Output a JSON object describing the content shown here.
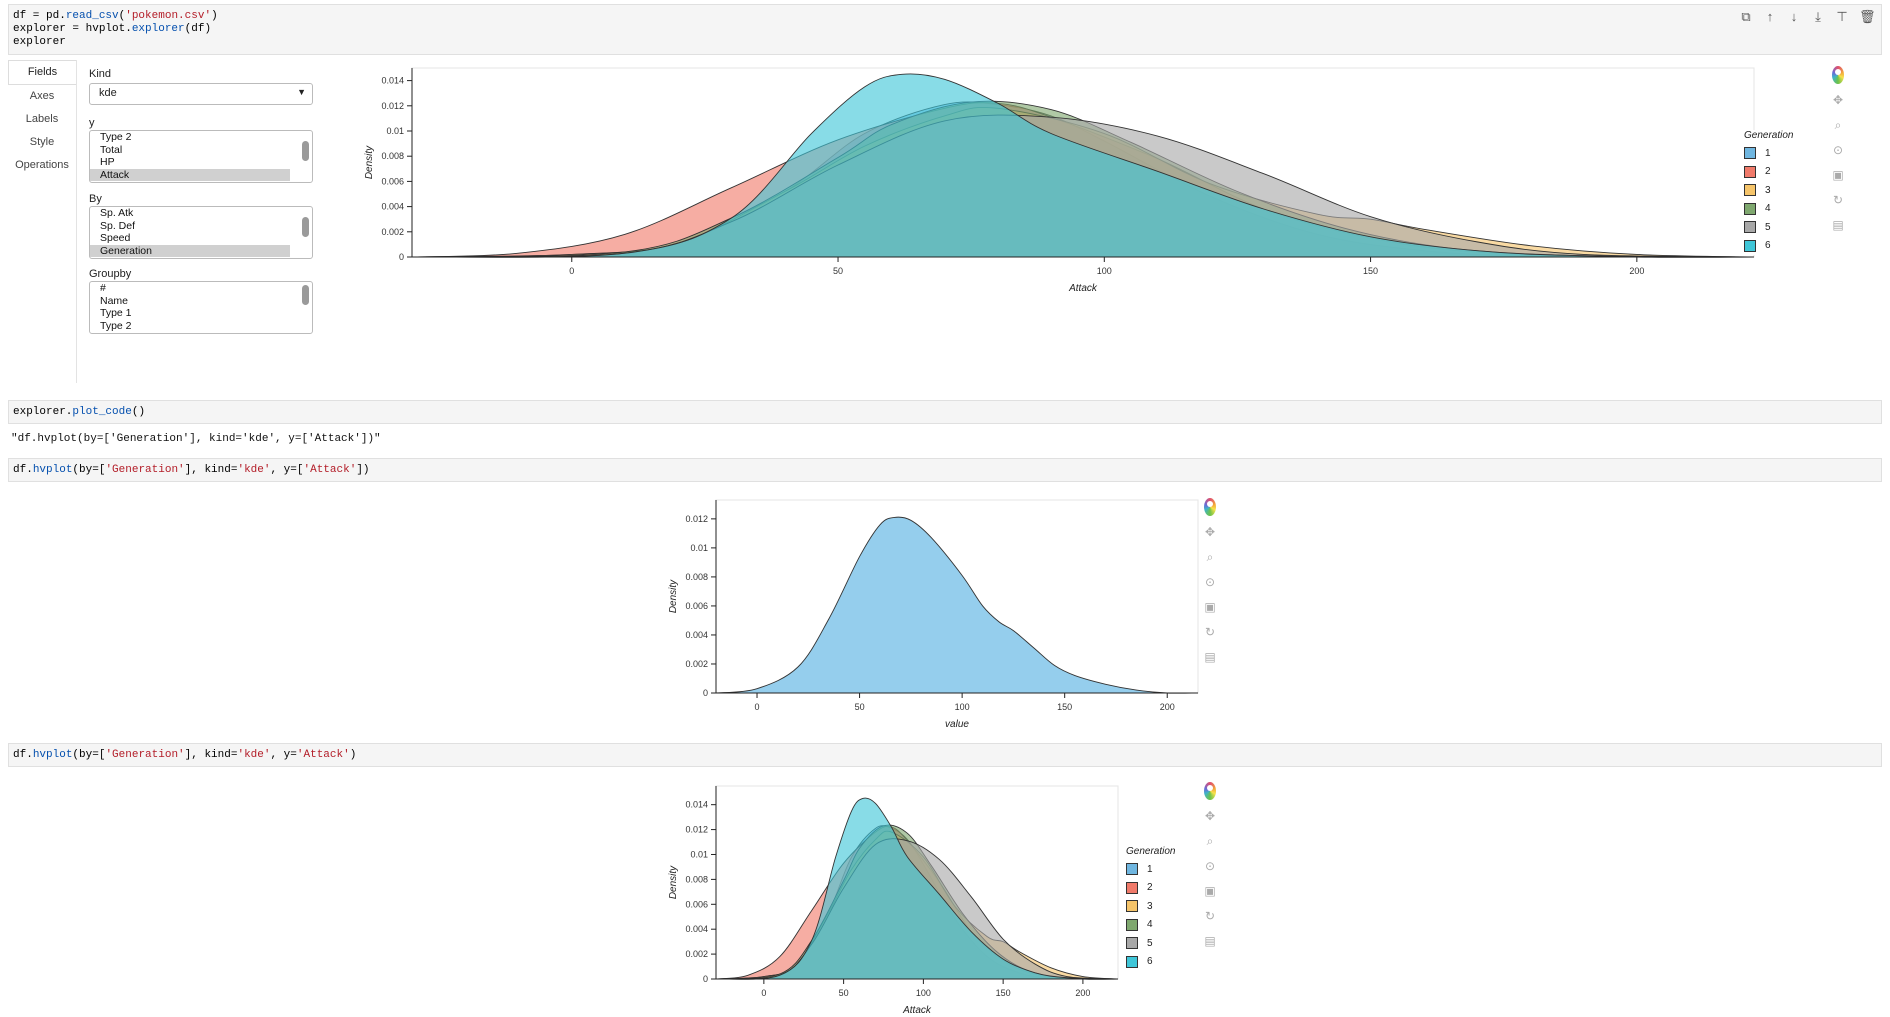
{
  "cells": {
    "cell1": {
      "lines": [
        [
          {
            "t": "df = pd."
          },
          {
            "t": "read_csv",
            "c": "fn"
          },
          {
            "t": "("
          },
          {
            "t": "'pokemon.csv'",
            "c": "str"
          },
          {
            "t": ")"
          }
        ],
        [
          {
            "t": "explorer = hvplot."
          },
          {
            "t": "explorer",
            "c": "fn"
          },
          {
            "t": "(df)"
          }
        ],
        [
          {
            "t": "explorer"
          }
        ]
      ],
      "toolbar": [
        "⧉",
        "↑",
        "↓",
        "⤓",
        "⊤",
        "🗑"
      ]
    },
    "cell2": {
      "lines": [
        [
          {
            "t": "explorer."
          },
          {
            "t": "plot_code",
            "c": "fn"
          },
          {
            "t": "()"
          }
        ]
      ]
    },
    "cell2_output": "\"df.hvplot(by=['Generation'], kind='kde', y=['Attack'])\"",
    "cell3": {
      "lines": [
        [
          {
            "t": "df."
          },
          {
            "t": "hvplot",
            "c": "fn"
          },
          {
            "t": "(by=["
          },
          {
            "t": "'Generation'",
            "c": "str"
          },
          {
            "t": "], kind="
          },
          {
            "t": "'kde'",
            "c": "str"
          },
          {
            "t": ", y=["
          },
          {
            "t": "'Attack'",
            "c": "str"
          },
          {
            "t": "])"
          }
        ]
      ]
    },
    "cell4": {
      "lines": [
        [
          {
            "t": "df."
          },
          {
            "t": "hvplot",
            "c": "fn"
          },
          {
            "t": "(by=["
          },
          {
            "t": "'Generation'",
            "c": "str"
          },
          {
            "t": "], kind="
          },
          {
            "t": "'kde'",
            "c": "str"
          },
          {
            "t": ", y="
          },
          {
            "t": "'Attack'",
            "c": "str"
          },
          {
            "t": ")"
          }
        ]
      ]
    }
  },
  "explorer": {
    "tabs": [
      "Fields",
      "Axes",
      "Labels",
      "Style",
      "Operations"
    ],
    "active_tab": "Fields",
    "kind": {
      "label": "Kind",
      "value": "kde"
    },
    "y": {
      "label": "y",
      "options": [
        "Type 2",
        "Total",
        "HP",
        "Attack"
      ],
      "selected": "Attack"
    },
    "by": {
      "label": "By",
      "options": [
        "Sp. Atk",
        "Sp. Def",
        "Speed",
        "Generation"
      ],
      "selected": "Generation"
    },
    "groupby": {
      "label": "Groupby",
      "options": [
        "#",
        "Name",
        "Type 1",
        "Type 2"
      ],
      "selected": null
    }
  },
  "colors": {
    "gen": [
      "#6fb6e0",
      "#f07a6a",
      "#f5c46a",
      "#7fa86f",
      "#a8a8a8",
      "#3fc6d8"
    ],
    "single": "#8fcbec",
    "edge": "#333333",
    "code_fn": "#0550ae",
    "code_str": "#b31d28"
  },
  "bokeh_tools": [
    "bokeh-logo",
    "pan-icon",
    "box-zoom-icon",
    "wheel-zoom-icon",
    "save-icon",
    "reset-icon",
    "hover-icon"
  ],
  "chart_data": [
    {
      "id": "explorer-plot",
      "type": "area",
      "title": "",
      "xlabel": "Attack",
      "ylabel": "Density",
      "xlim": [
        -30,
        222
      ],
      "ylim": [
        0,
        0.015
      ],
      "xticks": [
        0,
        50,
        100,
        150,
        200
      ],
      "yticks": [
        0,
        0.002,
        0.004,
        0.006,
        0.008,
        0.01,
        0.012,
        0.014
      ],
      "legend": {
        "title": "Generation",
        "position": "right"
      },
      "series": [
        {
          "name": "1",
          "points": [
            [
              -30,
              0
            ],
            [
              0,
              0.0002
            ],
            [
              20,
              0.0011
            ],
            [
              40,
              0.0052
            ],
            [
              55,
              0.0098
            ],
            [
              70,
              0.0121
            ],
            [
              80,
              0.0121
            ],
            [
              90,
              0.0112
            ],
            [
              100,
              0.0092
            ],
            [
              120,
              0.0048
            ],
            [
              140,
              0.0018
            ],
            [
              160,
              0.0005
            ],
            [
              180,
              0.0001
            ],
            [
              222,
              0
            ]
          ]
        },
        {
          "name": "2",
          "points": [
            [
              -30,
              0
            ],
            [
              -10,
              0.0003
            ],
            [
              10,
              0.0018
            ],
            [
              30,
              0.0055
            ],
            [
              50,
              0.0093
            ],
            [
              70,
              0.0118
            ],
            [
              80,
              0.0122
            ],
            [
              90,
              0.0111
            ],
            [
              110,
              0.0078
            ],
            [
              130,
              0.0038
            ],
            [
              150,
              0.0015
            ],
            [
              170,
              0.0004
            ],
            [
              200,
              0
            ],
            [
              222,
              0
            ]
          ]
        },
        {
          "name": "3",
          "points": [
            [
              -30,
              0
            ],
            [
              0,
              0.0002
            ],
            [
              20,
              0.0011
            ],
            [
              40,
              0.0052
            ],
            [
              55,
              0.0088
            ],
            [
              70,
              0.0112
            ],
            [
              80,
              0.0118
            ],
            [
              100,
              0.0098
            ],
            [
              120,
              0.0058
            ],
            [
              140,
              0.0034
            ],
            [
              150,
              0.003
            ],
            [
              160,
              0.0022
            ],
            [
              180,
              0.0009
            ],
            [
              200,
              0.0002
            ],
            [
              222,
              0
            ]
          ]
        },
        {
          "name": "4",
          "points": [
            [
              -30,
              0
            ],
            [
              10,
              0.0004
            ],
            [
              30,
              0.0031
            ],
            [
              50,
              0.0079
            ],
            [
              60,
              0.0105
            ],
            [
              75,
              0.0123
            ],
            [
              90,
              0.0117
            ],
            [
              105,
              0.0091
            ],
            [
              125,
              0.0052
            ],
            [
              145,
              0.0023
            ],
            [
              165,
              0.0007
            ],
            [
              190,
              0.0001
            ],
            [
              222,
              0
            ]
          ]
        },
        {
          "name": "5",
          "points": [
            [
              -30,
              0
            ],
            [
              10,
              0.0003
            ],
            [
              30,
              0.0028
            ],
            [
              50,
              0.0073
            ],
            [
              70,
              0.0108
            ],
            [
              90,
              0.0111
            ],
            [
              110,
              0.0096
            ],
            [
              130,
              0.0066
            ],
            [
              150,
              0.0032
            ],
            [
              170,
              0.0012
            ],
            [
              190,
              0.0002
            ],
            [
              222,
              0
            ]
          ]
        },
        {
          "name": "6",
          "points": [
            [
              -30,
              0
            ],
            [
              10,
              0.0003
            ],
            [
              30,
              0.0031
            ],
            [
              45,
              0.0098
            ],
            [
              55,
              0.0135
            ],
            [
              62,
              0.0145
            ],
            [
              70,
              0.0141
            ],
            [
              80,
              0.0122
            ],
            [
              90,
              0.0098
            ],
            [
              110,
              0.0068
            ],
            [
              130,
              0.0038
            ],
            [
              150,
              0.0016
            ],
            [
              170,
              0.0005
            ],
            [
              190,
              0.0001
            ],
            [
              222,
              0
            ]
          ]
        }
      ]
    },
    {
      "id": "single-kde-plot",
      "type": "area",
      "title": "",
      "xlabel": "value",
      "ylabel": "Density",
      "xlim": [
        -20,
        215
      ],
      "ylim": [
        0,
        0.0133
      ],
      "xticks": [
        0,
        50,
        100,
        150,
        200
      ],
      "yticks": [
        0,
        0.002,
        0.004,
        0.006,
        0.008,
        0.01,
        0.012
      ],
      "series": [
        {
          "points": [
            [
              -20,
              0
            ],
            [
              0,
              0.0003
            ],
            [
              20,
              0.0018
            ],
            [
              35,
              0.0051
            ],
            [
              50,
              0.0094
            ],
            [
              60,
              0.0116
            ],
            [
              67,
              0.0121
            ],
            [
              75,
              0.0119
            ],
            [
              85,
              0.0107
            ],
            [
              100,
              0.0081
            ],
            [
              110,
              0.006
            ],
            [
              118,
              0.0049
            ],
            [
              125,
              0.0043
            ],
            [
              135,
              0.0031
            ],
            [
              145,
              0.0019
            ],
            [
              155,
              0.0012
            ],
            [
              170,
              0.0006
            ],
            [
              185,
              0.0002
            ],
            [
              200,
              0
            ],
            [
              215,
              0
            ]
          ]
        }
      ]
    },
    {
      "id": "generation-kde-plot",
      "type": "area",
      "title": "",
      "xlabel": "Attack",
      "ylabel": "Density",
      "xlim": [
        -30,
        222
      ],
      "ylim": [
        0,
        0.0155
      ],
      "xticks": [
        0,
        50,
        100,
        150,
        200
      ],
      "yticks": [
        0,
        0.002,
        0.004,
        0.006,
        0.008,
        0.01,
        0.012,
        0.014
      ],
      "legend": {
        "title": "Generation",
        "position": "right"
      },
      "series": [
        {
          "name": "1",
          "points": [
            [
              -30,
              0
            ],
            [
              0,
              0.0002
            ],
            [
              20,
              0.0011
            ],
            [
              40,
              0.0052
            ],
            [
              55,
              0.0098
            ],
            [
              70,
              0.0121
            ],
            [
              80,
              0.0121
            ],
            [
              90,
              0.0112
            ],
            [
              100,
              0.0092
            ],
            [
              120,
              0.0048
            ],
            [
              140,
              0.0018
            ],
            [
              160,
              0.0005
            ],
            [
              180,
              0.0001
            ],
            [
              222,
              0
            ]
          ]
        },
        {
          "name": "2",
          "points": [
            [
              -30,
              0
            ],
            [
              -10,
              0.0003
            ],
            [
              10,
              0.0018
            ],
            [
              30,
              0.0055
            ],
            [
              50,
              0.0093
            ],
            [
              70,
              0.0118
            ],
            [
              80,
              0.0122
            ],
            [
              90,
              0.0111
            ],
            [
              110,
              0.0078
            ],
            [
              130,
              0.0038
            ],
            [
              150,
              0.0015
            ],
            [
              170,
              0.0004
            ],
            [
              200,
              0
            ],
            [
              222,
              0
            ]
          ]
        },
        {
          "name": "3",
          "points": [
            [
              -30,
              0
            ],
            [
              0,
              0.0002
            ],
            [
              20,
              0.0011
            ],
            [
              40,
              0.0052
            ],
            [
              55,
              0.0088
            ],
            [
              70,
              0.0112
            ],
            [
              80,
              0.0118
            ],
            [
              100,
              0.0098
            ],
            [
              120,
              0.0058
            ],
            [
              140,
              0.0034
            ],
            [
              150,
              0.003
            ],
            [
              160,
              0.0022
            ],
            [
              180,
              0.0009
            ],
            [
              200,
              0.0002
            ],
            [
              222,
              0
            ]
          ]
        },
        {
          "name": "4",
          "points": [
            [
              -30,
              0
            ],
            [
              10,
              0.0004
            ],
            [
              30,
              0.0031
            ],
            [
              50,
              0.0079
            ],
            [
              60,
              0.0105
            ],
            [
              75,
              0.0123
            ],
            [
              90,
              0.0117
            ],
            [
              105,
              0.0091
            ],
            [
              125,
              0.0052
            ],
            [
              145,
              0.0023
            ],
            [
              165,
              0.0007
            ],
            [
              190,
              0.0001
            ],
            [
              222,
              0
            ]
          ]
        },
        {
          "name": "5",
          "points": [
            [
              -30,
              0
            ],
            [
              10,
              0.0003
            ],
            [
              30,
              0.0028
            ],
            [
              50,
              0.0073
            ],
            [
              70,
              0.0108
            ],
            [
              90,
              0.0111
            ],
            [
              110,
              0.0096
            ],
            [
              130,
              0.0066
            ],
            [
              150,
              0.0032
            ],
            [
              170,
              0.0012
            ],
            [
              190,
              0.0002
            ],
            [
              222,
              0
            ]
          ]
        },
        {
          "name": "6",
          "points": [
            [
              -30,
              0
            ],
            [
              10,
              0.0003
            ],
            [
              30,
              0.0031
            ],
            [
              45,
              0.0098
            ],
            [
              55,
              0.0135
            ],
            [
              62,
              0.0145
            ],
            [
              70,
              0.0141
            ],
            [
              80,
              0.0122
            ],
            [
              90,
              0.0098
            ],
            [
              110,
              0.0068
            ],
            [
              130,
              0.0038
            ],
            [
              150,
              0.0016
            ],
            [
              170,
              0.0005
            ],
            [
              190,
              0.0001
            ],
            [
              222,
              0
            ]
          ]
        }
      ]
    }
  ]
}
